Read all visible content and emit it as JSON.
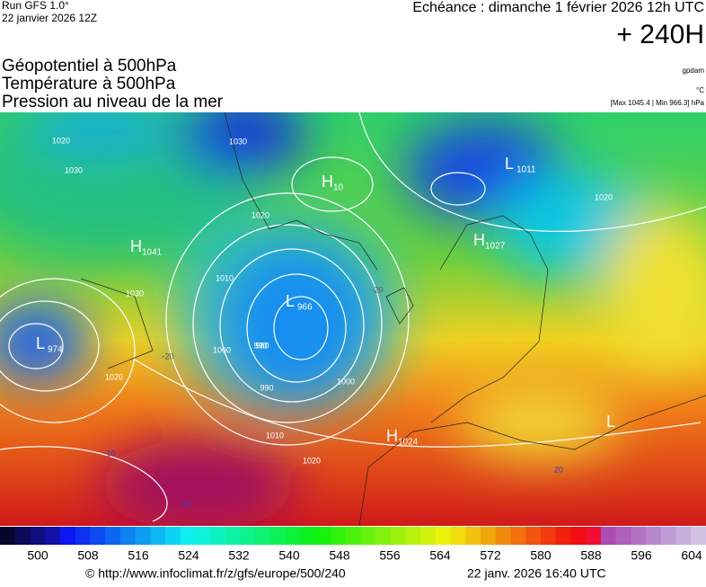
{
  "header": {
    "run": "Run GFS 1.0°",
    "run_date": "22 janvier 2026 12Z",
    "valid": "Echéance : dimanche 1 février 2026 12h UTC",
    "lead": "+ 240H",
    "titles": [
      "Géopotentiel à 500hPa",
      "Température à 500hPa",
      "Pression au niveau de la mer"
    ],
    "units": [
      "gpdam",
      "°C",
      "[Max 1045.4 | Min 966.3] hPa"
    ]
  },
  "map": {
    "centers": [
      {
        "letter": "H",
        "value": "1041"
      },
      {
        "letter": "L",
        "value": "966"
      },
      {
        "letter": "H",
        "value": "10"
      },
      {
        "letter": "H",
        "value": "1027"
      },
      {
        "letter": "L",
        "value": "1011"
      },
      {
        "letter": "L",
        "value": "974"
      },
      {
        "letter": "H",
        "value": "1024"
      },
      {
        "letter": "L"
      }
    ],
    "contour_labels": [
      "1020",
      "1030",
      "1030",
      "1020",
      "1010",
      "1000",
      "990",
      "980",
      "990",
      "1000",
      "1010",
      "1020",
      "1020",
      "1030",
      "1020",
      "-20",
      "-20",
      "-10",
      "-10",
      "20"
    ]
  },
  "colorbar": {
    "ticks": [
      500,
      508,
      516,
      524,
      532,
      540,
      548,
      556,
      564,
      572,
      580,
      588,
      596,
      604
    ]
  },
  "footer": {
    "source": "© http://www.infoclimat.fr/z/gfs/europe/500/240",
    "generated": "22 janv. 2026 16:40 UTC"
  }
}
